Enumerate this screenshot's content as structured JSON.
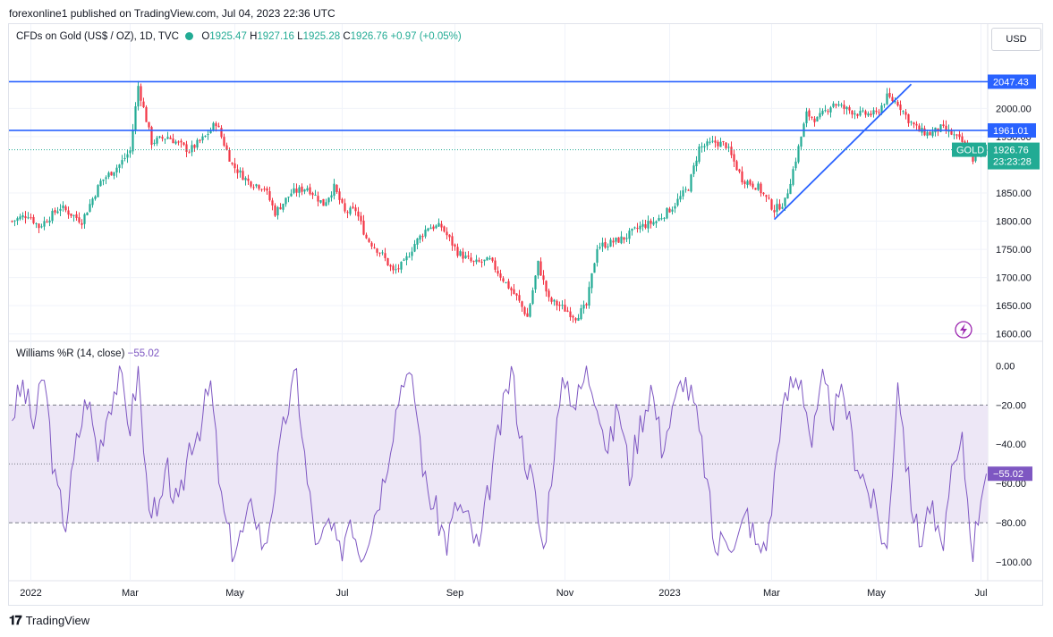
{
  "header": {
    "text": "forexonline1 published on TradingView.com, Jul 04, 2023 22:36 UTC"
  },
  "legend": {
    "symbol": "CFDs on Gold (US$ / OZ), 1D, TVC",
    "o_label": "O",
    "o": "1925.47",
    "h_label": "H",
    "h": "1927.16",
    "l_label": "L",
    "l": "1925.28",
    "c_label": "C",
    "c": "1926.76",
    "change": "+0.97 (+0.05%)"
  },
  "currency": "USD",
  "indicator": {
    "label": "Williams %R (14, close)",
    "value": "−55.02"
  },
  "price_tags": {
    "line1": "2047.43",
    "line2": "1961.01",
    "symbol": "GOLD",
    "last": "1926.76",
    "countdown": "23:23:28",
    "wr_last": "−55.02"
  },
  "footer": {
    "brand": "TradingView"
  },
  "colors": {
    "up": "#22ab94",
    "down": "#f23645",
    "line": "#2962ff",
    "wr": "#7e57c2",
    "band": "#ede7f6"
  },
  "chart_data": [
    {
      "type": "candlestick",
      "title": "CFDs on Gold (US$ / OZ), 1D, TVC",
      "ylim": [
        1590,
        2110
      ],
      "yticks": [
        2000.0,
        1950.0,
        1850.0,
        1800.0,
        1750.0,
        1700.0,
        1650.0,
        1600.0
      ],
      "xticks": [
        "2022",
        "Mar",
        "May",
        "Jul",
        "Sep",
        "Nov",
        "2023",
        "Mar",
        "May",
        "Jul"
      ],
      "xtick_index": [
        7,
        44,
        83,
        123,
        165,
        206,
        245,
        283,
        322,
        361
      ],
      "close_anchors": [
        [
          0,
          1800
        ],
        [
          6,
          1812
        ],
        [
          10,
          1790
        ],
        [
          18,
          1825
        ],
        [
          26,
          1800
        ],
        [
          33,
          1870
        ],
        [
          40,
          1900
        ],
        [
          44,
          1925
        ],
        [
          47,
          2040
        ],
        [
          52,
          1940
        ],
        [
          58,
          1950
        ],
        [
          66,
          1925
        ],
        [
          72,
          1950
        ],
        [
          76,
          1975
        ],
        [
          82,
          1900
        ],
        [
          88,
          1870
        ],
        [
          94,
          1860
        ],
        [
          98,
          1815
        ],
        [
          104,
          1850
        ],
        [
          110,
          1860
        ],
        [
          116,
          1830
        ],
        [
          120,
          1860
        ],
        [
          124,
          1815
        ],
        [
          128,
          1820
        ],
        [
          132,
          1770
        ],
        [
          138,
          1740
        ],
        [
          142,
          1710
        ],
        [
          146,
          1725
        ],
        [
          150,
          1760
        ],
        [
          155,
          1790
        ],
        [
          160,
          1790
        ],
        [
          166,
          1745
        ],
        [
          172,
          1725
        ],
        [
          178,
          1730
        ],
        [
          184,
          1690
        ],
        [
          188,
          1665
        ],
        [
          192,
          1630
        ],
        [
          196,
          1725
        ],
        [
          200,
          1660
        ],
        [
          204,
          1650
        ],
        [
          210,
          1630
        ],
        [
          214,
          1650
        ],
        [
          218,
          1755
        ],
        [
          222,
          1760
        ],
        [
          228,
          1770
        ],
        [
          234,
          1790
        ],
        [
          240,
          1800
        ],
        [
          246,
          1825
        ],
        [
          252,
          1860
        ],
        [
          256,
          1930
        ],
        [
          262,
          1940
        ],
        [
          266,
          1935
        ],
        [
          272,
          1875
        ],
        [
          278,
          1860
        ],
        [
          284,
          1820
        ],
        [
          288,
          1835
        ],
        [
          292,
          1910
        ],
        [
          296,
          1990
        ],
        [
          300,
          1980
        ],
        [
          306,
          2010
        ],
        [
          310,
          2000
        ],
        [
          316,
          1990
        ],
        [
          322,
          1990
        ],
        [
          326,
          2020
        ],
        [
          330,
          2010
        ],
        [
          334,
          1980
        ],
        [
          338,
          1960
        ],
        [
          342,
          1955
        ],
        [
          346,
          1965
        ],
        [
          350,
          1955
        ],
        [
          354,
          1940
        ],
        [
          358,
          1910
        ],
        [
          362,
          1926.76
        ]
      ],
      "horizontal_lines": [
        2047.43,
        1961.01
      ],
      "trendline": {
        "from": [
          284,
          1803
        ],
        "to": [
          335,
          2043
        ]
      },
      "last_price": 1926.76
    },
    {
      "type": "line",
      "title": "Williams %R (14, close)",
      "ylim": [
        -105,
        2
      ],
      "yticks": [
        0.0,
        -20.0,
        -40.0,
        -60.0,
        -80.0,
        -100.0
      ],
      "band": [
        -20,
        -80
      ],
      "midline": -50,
      "anchors": [
        [
          0,
          -25
        ],
        [
          4,
          -10
        ],
        [
          8,
          -30
        ],
        [
          12,
          -5
        ],
        [
          16,
          -60
        ],
        [
          20,
          -80
        ],
        [
          24,
          -40
        ],
        [
          28,
          -15
        ],
        [
          32,
          -45
        ],
        [
          36,
          -20
        ],
        [
          40,
          -5
        ],
        [
          44,
          -30
        ],
        [
          47,
          -3
        ],
        [
          50,
          -60
        ],
        [
          54,
          -80
        ],
        [
          58,
          -55
        ],
        [
          62,
          -75
        ],
        [
          66,
          -40
        ],
        [
          70,
          -30
        ],
        [
          74,
          -10
        ],
        [
          78,
          -70
        ],
        [
          82,
          -95
        ],
        [
          86,
          -85
        ],
        [
          90,
          -70
        ],
        [
          94,
          -95
        ],
        [
          98,
          -60
        ],
        [
          102,
          -25
        ],
        [
          106,
          -5
        ],
        [
          110,
          -60
        ],
        [
          114,
          -95
        ],
        [
          118,
          -80
        ],
        [
          122,
          -97
        ],
        [
          126,
          -75
        ],
        [
          130,
          -95
        ],
        [
          134,
          -80
        ],
        [
          138,
          -60
        ],
        [
          142,
          -30
        ],
        [
          146,
          -2
        ],
        [
          150,
          -15
        ],
        [
          154,
          -60
        ],
        [
          158,
          -75
        ],
        [
          162,
          -90
        ],
        [
          166,
          -70
        ],
        [
          170,
          -80
        ],
        [
          174,
          -95
        ],
        [
          178,
          -60
        ],
        [
          182,
          -30
        ],
        [
          186,
          -2
        ],
        [
          190,
          -40
        ],
        [
          194,
          -60
        ],
        [
          198,
          -95
        ],
        [
          202,
          -40
        ],
        [
          206,
          -5
        ],
        [
          210,
          -20
        ],
        [
          214,
          -3
        ],
        [
          218,
          -15
        ],
        [
          222,
          -45
        ],
        [
          226,
          -20
        ],
        [
          230,
          -55
        ],
        [
          234,
          -30
        ],
        [
          238,
          -10
        ],
        [
          242,
          -40
        ],
        [
          246,
          -25
        ],
        [
          250,
          -5
        ],
        [
          254,
          -20
        ],
        [
          258,
          -50
        ],
        [
          262,
          -95
        ],
        [
          266,
          -85
        ],
        [
          270,
          -90
        ],
        [
          274,
          -75
        ],
        [
          278,
          -95
        ],
        [
          282,
          -85
        ],
        [
          286,
          -30
        ],
        [
          290,
          -10
        ],
        [
          294,
          -5
        ],
        [
          298,
          -40
        ],
        [
          302,
          -10
        ],
        [
          306,
          -25
        ],
        [
          310,
          -15
        ],
        [
          314,
          -45
        ],
        [
          318,
          -60
        ],
        [
          322,
          -75
        ],
        [
          326,
          -95
        ],
        [
          330,
          -5
        ],
        [
          334,
          -60
        ],
        [
          338,
          -90
        ],
        [
          342,
          -70
        ],
        [
          346,
          -95
        ],
        [
          350,
          -60
        ],
        [
          354,
          -40
        ],
        [
          358,
          -95
        ],
        [
          362,
          -55.02
        ]
      ],
      "last_value": -55.02
    }
  ]
}
